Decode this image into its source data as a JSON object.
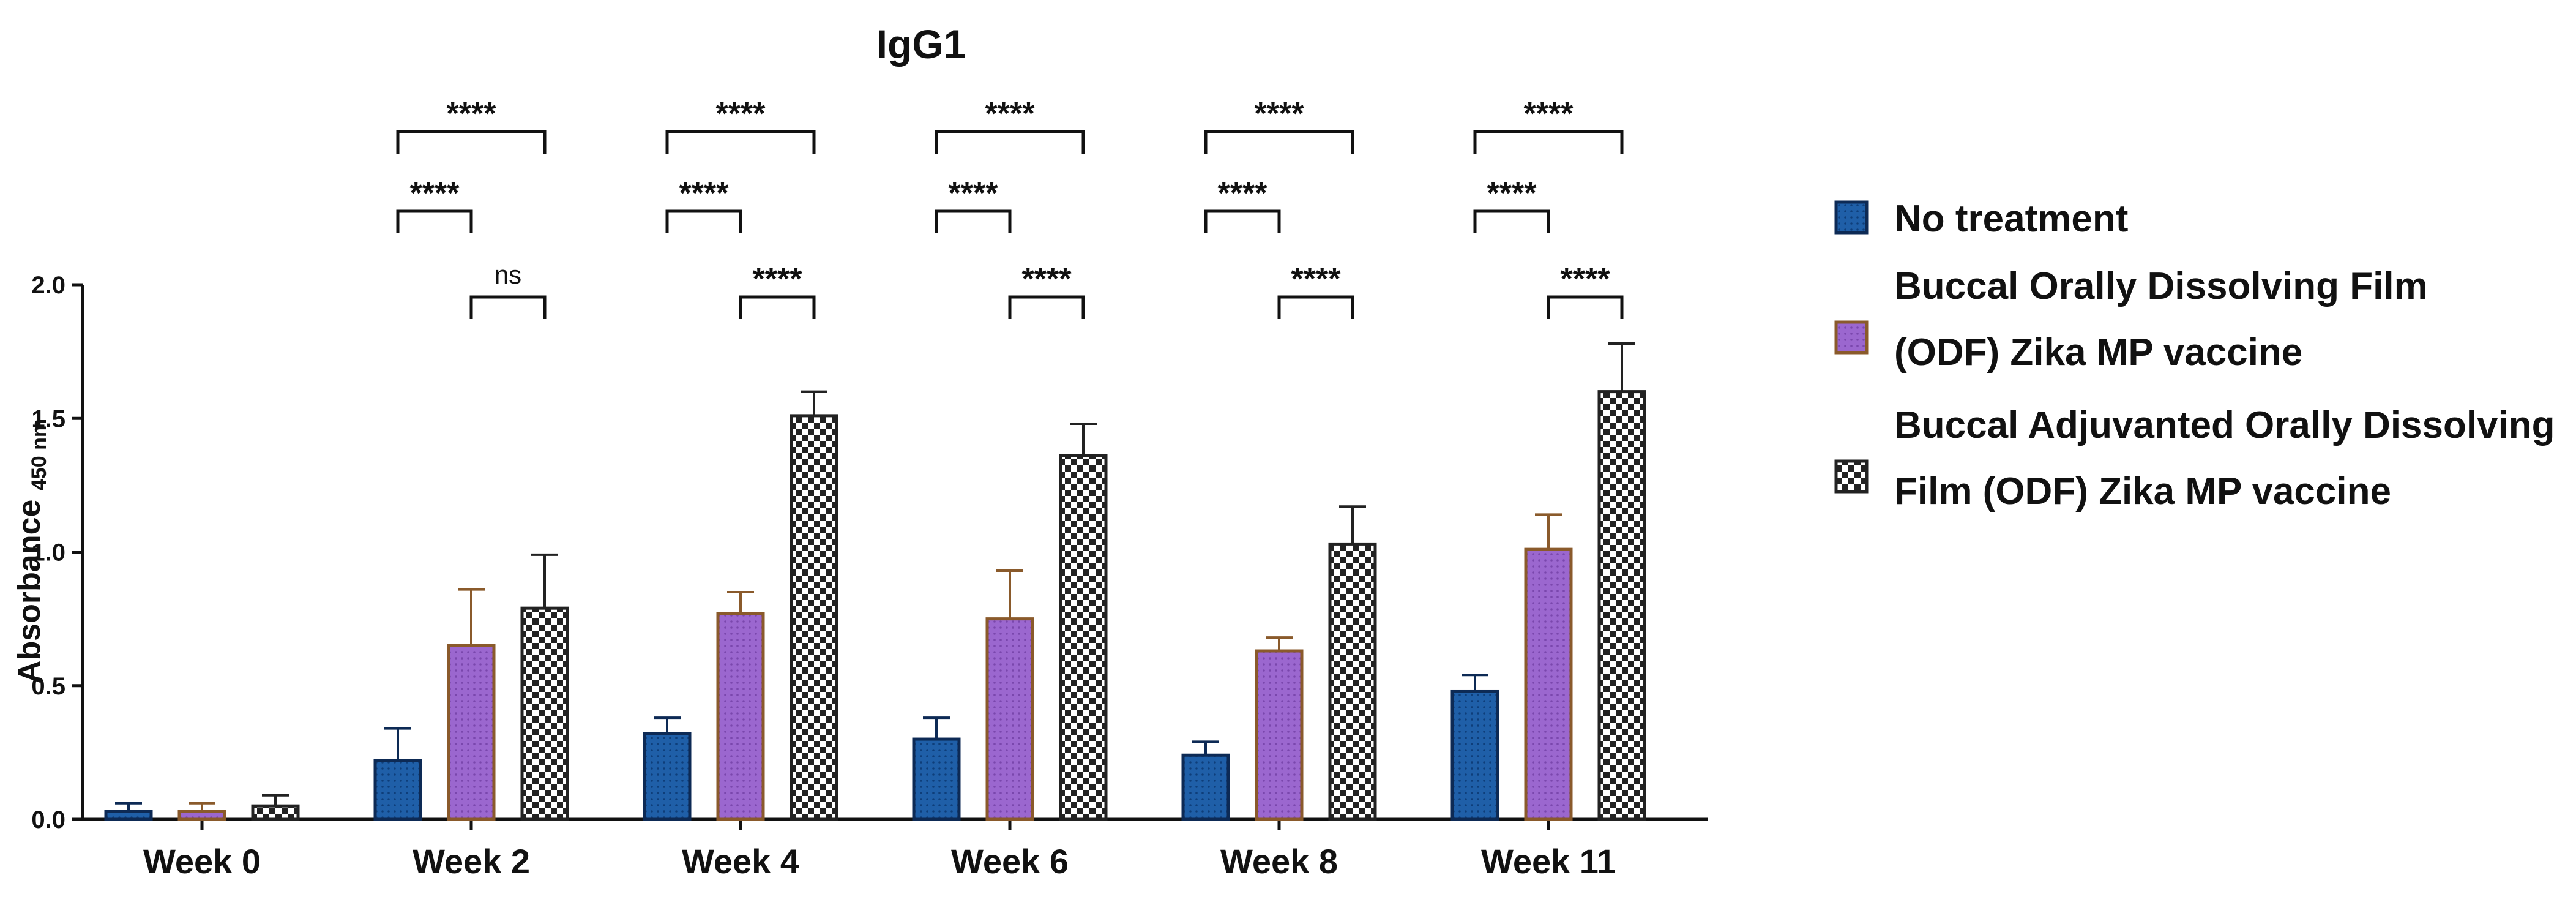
{
  "chart_data": {
    "type": "bar",
    "title": "IgG1",
    "ylabel": "Absorbance",
    "ylabel_unit": "450 nm",
    "xlabel": "",
    "ylim": [
      0,
      2.0
    ],
    "yticks": [
      "0.0",
      "0.5",
      "1.0",
      "1.5",
      "2.0"
    ],
    "categories": [
      "Week 0",
      "Week 2",
      "Week 4",
      "Week 6",
      "Week 8",
      "Week 11"
    ],
    "series": [
      {
        "name": "No treatment",
        "pattern": "dots",
        "fill": "#1f5fa8",
        "edge": "#0d2a55",
        "values": [
          0.03,
          0.22,
          0.32,
          0.3,
          0.24,
          0.48
        ],
        "errors": [
          0.03,
          0.12,
          0.06,
          0.08,
          0.05,
          0.06
        ]
      },
      {
        "name": "Buccal Orally Dissolving Film (ODF) Zika MP vaccine",
        "legend_lines": [
          "Buccal Orally Dissolving Film",
          "(ODF) Zika MP vaccine"
        ],
        "pattern": "dots",
        "fill": "#9b67cf",
        "edge": "#8a5a2b",
        "values": [
          0.03,
          0.65,
          0.77,
          0.75,
          0.63,
          1.01
        ],
        "errors": [
          0.03,
          0.21,
          0.08,
          0.18,
          0.05,
          0.13
        ]
      },
      {
        "name": "Buccal Adjuvanted Orally Dissolving Film (ODF) Zika MP vaccine",
        "legend_lines": [
          "Buccal Adjuvanted Orally Dissolving",
          "Film (ODF) Zika MP vaccine"
        ],
        "pattern": "checker",
        "fill": "#ffffff",
        "edge": "#222222",
        "values": [
          0.05,
          0.79,
          1.51,
          1.36,
          1.03,
          1.6
        ],
        "errors": [
          0.04,
          0.2,
          0.09,
          0.12,
          0.14,
          0.18
        ]
      }
    ],
    "significance": [
      {
        "category": "Week 2",
        "comparisons": [
          {
            "from": 0,
            "to": 2,
            "label": "****"
          },
          {
            "from": 0,
            "to": 1,
            "label": "****"
          },
          {
            "from": 1,
            "to": 2,
            "label": "ns"
          }
        ]
      },
      {
        "category": "Week 4",
        "comparisons": [
          {
            "from": 0,
            "to": 2,
            "label": "****"
          },
          {
            "from": 0,
            "to": 1,
            "label": "****"
          },
          {
            "from": 1,
            "to": 2,
            "label": "****"
          }
        ]
      },
      {
        "category": "Week 6",
        "comparisons": [
          {
            "from": 0,
            "to": 2,
            "label": "****"
          },
          {
            "from": 1,
            "to": 2,
            "label": "****"
          },
          {
            "from": 0,
            "to": 1,
            "label": "****"
          }
        ]
      },
      {
        "category": "Week 8",
        "comparisons": [
          {
            "from": 0,
            "to": 2,
            "label": "****"
          },
          {
            "from": 1,
            "to": 2,
            "label": "****"
          },
          {
            "from": 0,
            "to": 1,
            "label": "****"
          }
        ]
      },
      {
        "category": "Week 11",
        "comparisons": [
          {
            "from": 0,
            "to": 2,
            "label": "****"
          },
          {
            "from": 0,
            "to": 1,
            "label": "****"
          },
          {
            "from": 1,
            "to": 2,
            "label": "****"
          }
        ]
      }
    ],
    "legend_position": "right",
    "grid": false
  }
}
